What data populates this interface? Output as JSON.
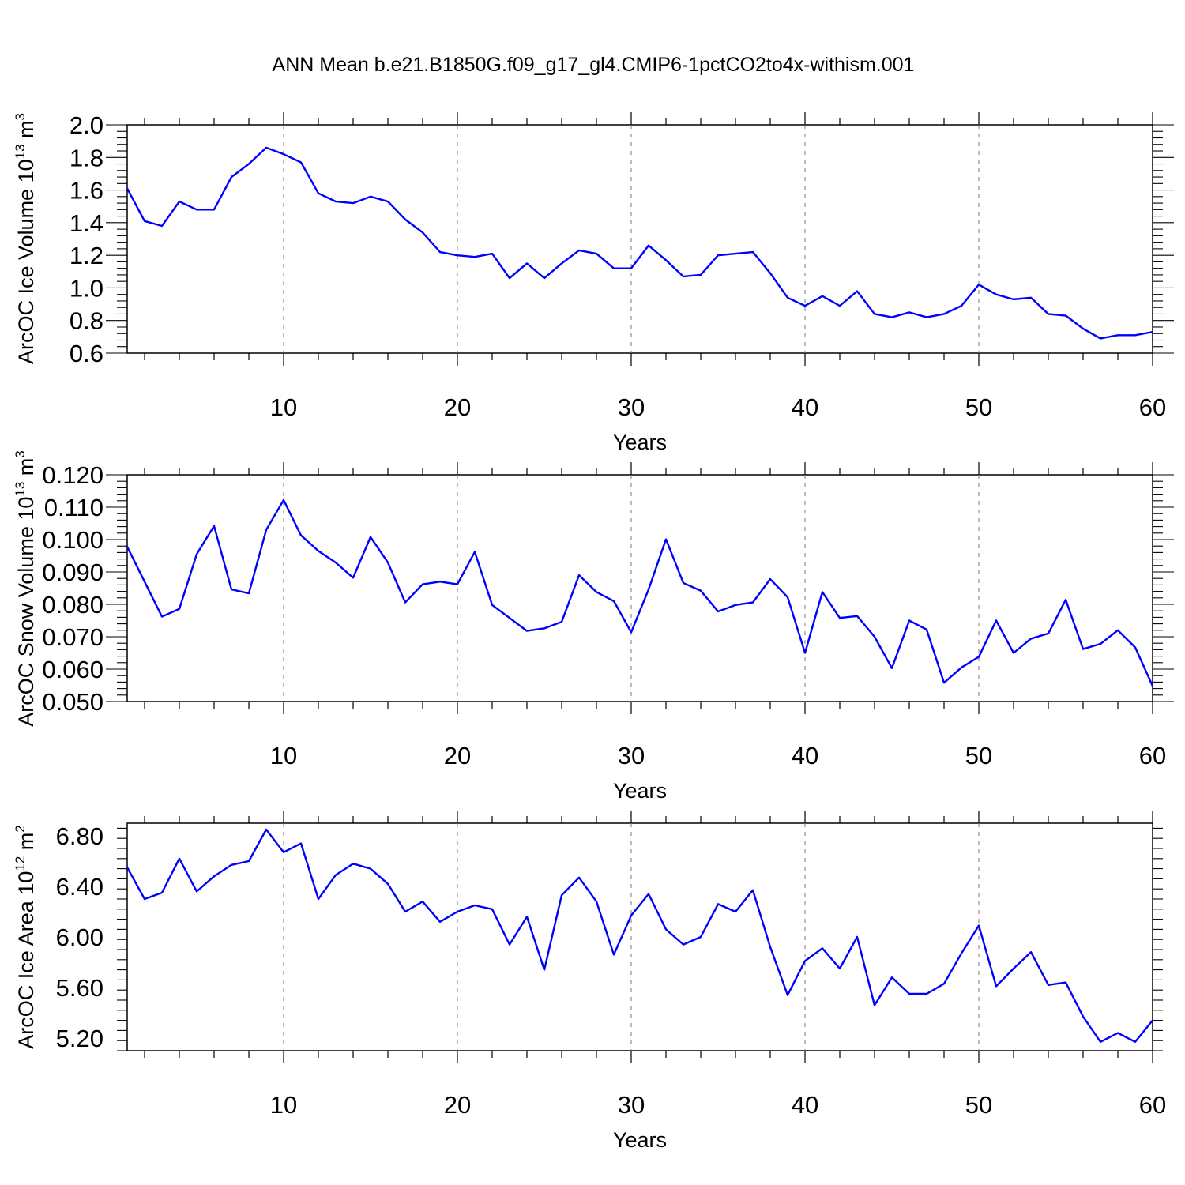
{
  "title": "ANN Mean b.e21.B1850G.f09_g17_gl4.CMIP6-1pctCO2to4x-withism.001",
  "chart_data": [
    {
      "type": "line",
      "ylabel_main": "ArcOC Ice Volume 10",
      "ylabel_exp": "13",
      "ylabel_unit": " m",
      "ylabel_unit_exp": "3",
      "xlabel": "Years",
      "xlim": [
        1,
        60
      ],
      "ylim": [
        0.6,
        2.0
      ],
      "yticks": [
        "0.6",
        "0.8",
        "1.0",
        "1.2",
        "1.4",
        "1.6",
        "1.8",
        "2.0"
      ],
      "xticks": [
        "10",
        "20",
        "30",
        "40",
        "50",
        "60"
      ],
      "line_color": "#0000ff",
      "x": [
        1,
        2,
        3,
        4,
        5,
        6,
        7,
        8,
        9,
        10,
        11,
        12,
        13,
        14,
        15,
        16,
        17,
        18,
        19,
        20,
        21,
        22,
        23,
        24,
        25,
        26,
        27,
        28,
        29,
        30,
        31,
        32,
        33,
        34,
        35,
        36,
        37,
        38,
        39,
        40,
        41,
        42,
        43,
        44,
        45,
        46,
        47,
        48,
        49,
        50,
        51,
        52,
        53,
        54,
        55,
        56,
        57,
        58,
        59,
        60
      ],
      "values": [
        1.61,
        1.41,
        1.38,
        1.53,
        1.48,
        1.48,
        1.68,
        1.76,
        1.86,
        1.82,
        1.77,
        1.58,
        1.53,
        1.52,
        1.56,
        1.53,
        1.42,
        1.34,
        1.22,
        1.2,
        1.19,
        1.21,
        1.06,
        1.15,
        1.06,
        1.15,
        1.23,
        1.21,
        1.12,
        1.12,
        1.26,
        1.17,
        1.07,
        1.08,
        1.2,
        1.21,
        1.22,
        1.09,
        0.94,
        0.89,
        0.95,
        0.89,
        0.98,
        0.84,
        0.82,
        0.85,
        0.82,
        0.84,
        0.89,
        1.02,
        0.96,
        0.93,
        0.94,
        0.84,
        0.83,
        0.75,
        0.69,
        0.71,
        0.71,
        0.73
      ]
    },
    {
      "type": "line",
      "ylabel_main": "ArcOC Snow Volume 10",
      "ylabel_exp": "13",
      "ylabel_unit": " m",
      "ylabel_unit_exp": "3",
      "xlabel": "Years",
      "xlim": [
        1,
        60
      ],
      "ylim": [
        0.05,
        0.12
      ],
      "yticks": [
        "0.050",
        "0.060",
        "0.070",
        "0.080",
        "0.090",
        "0.100",
        "0.110",
        "0.120"
      ],
      "xticks": [
        "10",
        "20",
        "30",
        "40",
        "50",
        "60"
      ],
      "line_color": "#0000ff",
      "x": [
        1,
        2,
        3,
        4,
        5,
        6,
        7,
        8,
        9,
        10,
        11,
        12,
        13,
        14,
        15,
        16,
        17,
        18,
        19,
        20,
        21,
        22,
        23,
        24,
        25,
        26,
        27,
        28,
        29,
        30,
        31,
        32,
        33,
        34,
        35,
        36,
        37,
        38,
        39,
        40,
        41,
        42,
        43,
        44,
        45,
        46,
        47,
        48,
        49,
        50,
        51,
        52,
        53,
        54,
        55,
        56,
        57,
        58,
        59,
        60
      ],
      "values": [
        0.0978,
        0.087,
        0.0762,
        0.0786,
        0.0955,
        0.1042,
        0.0846,
        0.0834,
        0.103,
        0.1122,
        0.1013,
        0.0965,
        0.0929,
        0.0882,
        0.1008,
        0.0929,
        0.0806,
        0.0862,
        0.087,
        0.0862,
        0.0962,
        0.0798,
        0.0758,
        0.0718,
        0.0726,
        0.0746,
        0.089,
        0.0838,
        0.081,
        0.0714,
        0.0846,
        0.1001,
        0.0866,
        0.0842,
        0.0778,
        0.0798,
        0.0806,
        0.0878,
        0.0822,
        0.065,
        0.0838,
        0.0758,
        0.0764,
        0.07,
        0.0603,
        0.075,
        0.0722,
        0.0558,
        0.0605,
        0.0638,
        0.075,
        0.065,
        0.0694,
        0.071,
        0.0814,
        0.0662,
        0.0678,
        0.072,
        0.0667,
        0.0548
      ]
    },
    {
      "type": "line",
      "ylabel_main": "ArcOC Ice Area 10",
      "ylabel_exp": "12",
      "ylabel_unit": " m",
      "ylabel_unit_exp": "2",
      "xlabel": "Years",
      "xlim": [
        1,
        60
      ],
      "ylim": [
        5.1,
        6.9
      ],
      "yticks": [
        "5.20",
        "5.60",
        "6.00",
        "6.40",
        "6.80"
      ],
      "xticks": [
        "10",
        "20",
        "30",
        "40",
        "50",
        "60"
      ],
      "line_color": "#0000ff",
      "x": [
        1,
        2,
        3,
        4,
        5,
        6,
        7,
        8,
        9,
        10,
        11,
        12,
        13,
        14,
        15,
        16,
        17,
        18,
        19,
        20,
        21,
        22,
        23,
        24,
        25,
        26,
        27,
        28,
        29,
        30,
        31,
        32,
        33,
        34,
        35,
        36,
        37,
        38,
        39,
        40,
        41,
        42,
        43,
        44,
        45,
        46,
        47,
        48,
        49,
        50,
        51,
        52,
        53,
        54,
        55,
        56,
        57,
        58,
        59,
        60
      ],
      "values": [
        6.55,
        6.3,
        6.35,
        6.62,
        6.36,
        6.48,
        6.57,
        6.6,
        6.85,
        6.67,
        6.74,
        6.3,
        6.49,
        6.58,
        6.54,
        6.42,
        6.2,
        6.28,
        6.12,
        6.2,
        6.25,
        6.22,
        5.94,
        6.16,
        5.74,
        6.33,
        6.47,
        6.28,
        5.86,
        6.17,
        6.34,
        6.06,
        5.94,
        6.0,
        6.26,
        6.2,
        6.37,
        5.92,
        5.54,
        5.81,
        5.91,
        5.75,
        6.0,
        5.46,
        5.68,
        5.55,
        5.55,
        5.63,
        5.87,
        6.09,
        5.61,
        5.75,
        5.88,
        5.62,
        5.64,
        5.37,
        5.17,
        5.24,
        5.17,
        5.34
      ]
    }
  ]
}
